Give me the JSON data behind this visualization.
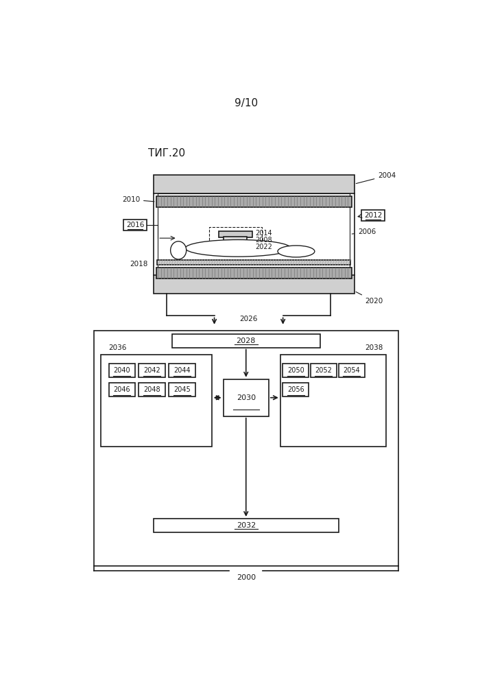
{
  "page_label": "9/10",
  "fig_label": "ΤИГ.20",
  "bg_color": "#ffffff",
  "line_color": "#1a1a1a",
  "text_color": "#1a1a1a"
}
